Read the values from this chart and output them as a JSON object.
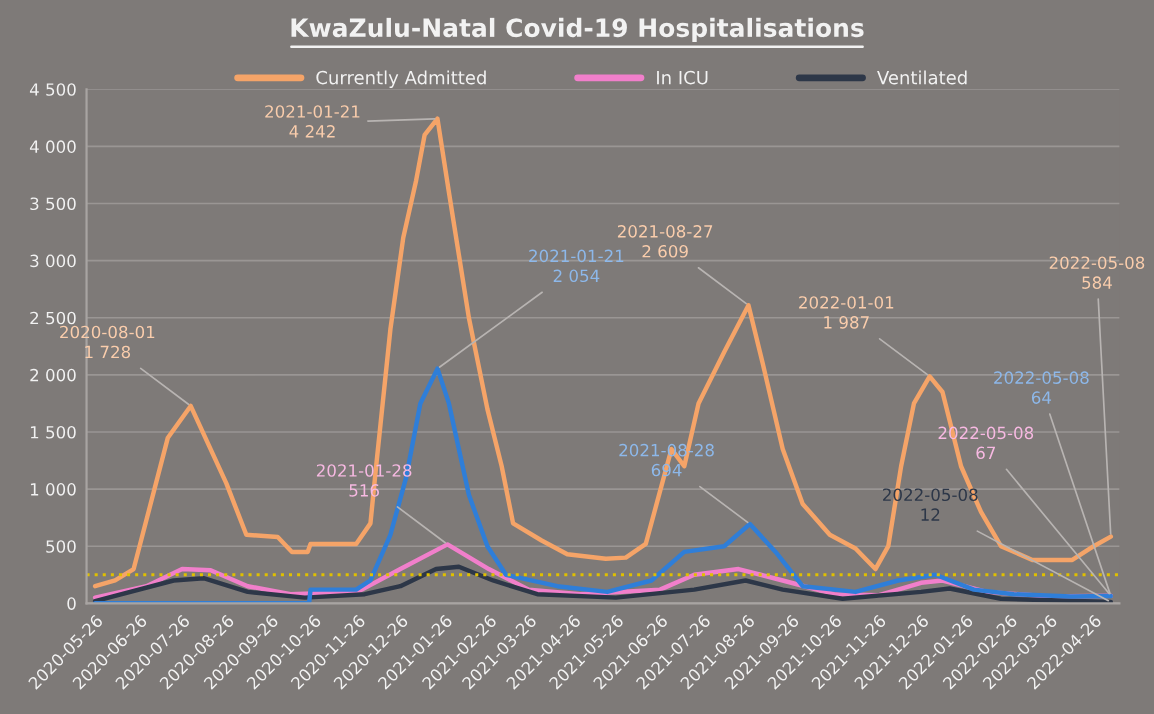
{
  "chart_data": {
    "type": "line",
    "title": "KwaZulu-Natal Covid-19 Hospitalisations",
    "series": [
      {
        "name": "Currently Admitted",
        "color": "#f5a468",
        "x": [
          "2020-05-26",
          "2020-06-09",
          "2020-06-22",
          "2020-07-16",
          "2020-08-01",
          "2020-08-26",
          "2020-09-09",
          "2020-10-01",
          "2020-10-11",
          "2020-10-22",
          "2020-10-24",
          "2020-11-25",
          "2020-12-05",
          "2020-12-09",
          "2020-12-19",
          "2020-12-28",
          "2021-01-06",
          "2021-01-12",
          "2021-01-21",
          "2021-01-29",
          "2021-02-12",
          "2021-02-25",
          "2021-03-07",
          "2021-03-15",
          "2021-04-04",
          "2021-04-22",
          "2021-05-19",
          "2021-06-02",
          "2021-06-16",
          "2021-07-04",
          "2021-07-13",
          "2021-07-23",
          "2021-08-10",
          "2021-08-27",
          "2021-09-06",
          "2021-09-20",
          "2021-10-04",
          "2021-10-23",
          "2021-11-10",
          "2021-11-24",
          "2021-12-03",
          "2021-12-12",
          "2021-12-21",
          "2022-01-01",
          "2022-01-10",
          "2022-01-23",
          "2022-02-06",
          "2022-02-20",
          "2022-03-14",
          "2022-04-11",
          "2022-04-26",
          "2022-05-08"
        ],
        "values": [
          150,
          200,
          300,
          1450,
          1728,
          1050,
          600,
          580,
          450,
          450,
          520,
          520,
          700,
          1200,
          2400,
          3200,
          3700,
          4100,
          4242,
          3600,
          2500,
          1700,
          1200,
          700,
          550,
          430,
          390,
          400,
          520,
          1350,
          1200,
          1750,
          2200,
          2609,
          2100,
          1350,
          870,
          600,
          480,
          300,
          500,
          1200,
          1750,
          1987,
          1850,
          1200,
          800,
          500,
          380,
          380,
          500,
          584
        ]
      },
      {
        "name": "In ICU",
        "color": "#f17fcb",
        "x": [
          "2020-05-26",
          "2020-07-01",
          "2020-07-26",
          "2020-08-15",
          "2020-09-10",
          "2020-10-10",
          "2020-11-26",
          "2020-12-26",
          "2021-01-28",
          "2021-02-26",
          "2021-03-26",
          "2021-05-01",
          "2021-06-26",
          "2021-07-20",
          "2021-08-20",
          "2021-09-20",
          "2021-10-26",
          "2021-11-26",
          "2021-12-26",
          "2022-01-10",
          "2022-02-10",
          "2022-03-26",
          "2022-05-08"
        ],
        "values": [
          50,
          150,
          300,
          290,
          150,
          80,
          100,
          300,
          516,
          300,
          120,
          80,
          120,
          250,
          300,
          200,
          80,
          70,
          180,
          200,
          100,
          60,
          67
        ]
      },
      {
        "name": "Ventilated",
        "color": "#2d3748",
        "x": [
          "2020-05-26",
          "2020-07-20",
          "2020-08-10",
          "2020-09-10",
          "2020-10-20",
          "2020-12-01",
          "2020-12-26",
          "2021-01-20",
          "2021-02-05",
          "2021-03-01",
          "2021-04-01",
          "2021-05-26",
          "2021-07-20",
          "2021-08-25",
          "2021-09-20",
          "2021-11-01",
          "2021-12-26",
          "2022-01-15",
          "2022-02-20",
          "2022-05-08"
        ],
        "values": [
          20,
          200,
          220,
          100,
          50,
          80,
          150,
          300,
          320,
          200,
          80,
          50,
          120,
          200,
          120,
          40,
          100,
          130,
          40,
          12
        ]
      },
      {
        "color": "#2f7ed8",
        "x": [
          "2020-05-26",
          "2020-10-23",
          "2020-10-24",
          "2020-11-25",
          "2020-12-05",
          "2020-12-19",
          "2020-12-30",
          "2021-01-09",
          "2021-01-21",
          "2021-01-29",
          "2021-02-12",
          "2021-02-25",
          "2021-03-10",
          "2021-04-15",
          "2021-05-20",
          "2021-06-20",
          "2021-07-13",
          "2021-08-10",
          "2021-08-28",
          "2021-09-15",
          "2021-10-04",
          "2021-11-10",
          "2021-12-10",
          "2022-01-05",
          "2022-02-01",
          "2022-03-01",
          "2022-04-10",
          "2022-05-08"
        ],
        "values": [
          0,
          0,
          120,
          120,
          200,
          600,
          1100,
          1750,
          2054,
          1750,
          950,
          500,
          250,
          150,
          100,
          200,
          450,
          500,
          694,
          450,
          150,
          100,
          200,
          250,
          120,
          80,
          60,
          64
        ]
      }
    ],
    "xlim": [
      "2020-05-20",
      "2022-05-14"
    ],
    "xticks": [
      "2020-05-26",
      "2020-06-26",
      "2020-07-26",
      "2020-08-26",
      "2020-09-26",
      "2020-10-26",
      "2020-11-26",
      "2020-12-26",
      "2021-01-26",
      "2021-02-26",
      "2021-03-26",
      "2021-04-26",
      "2021-05-26",
      "2021-06-26",
      "2021-07-26",
      "2021-08-26",
      "2021-09-26",
      "2021-10-26",
      "2021-11-26",
      "2021-12-26",
      "2022-01-26",
      "2022-02-26",
      "2022-03-26",
      "2022-04-26"
    ],
    "ylim": [
      0,
      4500
    ],
    "yticks": [
      0,
      500,
      {
        "value": 1000,
        "label": "1 000"
      },
      {
        "value": 1500,
        "label": "1 500"
      },
      {
        "value": 2000,
        "label": "2 000"
      },
      {
        "value": 2500,
        "label": "2 500"
      },
      {
        "value": 3000,
        "label": "3 000"
      },
      {
        "value": 3500,
        "label": "3 500"
      },
      {
        "value": 4000,
        "label": "4 000"
      },
      {
        "value": 4500,
        "label": "4 500"
      }
    ],
    "ref_lines": [
      {
        "axis": "y",
        "value": 250,
        "color": "#e0c000",
        "line_style": "dotted"
      }
    ],
    "annotations": [
      {
        "text": "2020-08-01\n1 728",
        "x": "2020-08-01",
        "y": 1728
      },
      {
        "text": "2021-01-21\n4 242",
        "x": "2021-01-21",
        "y": 4242
      },
      {
        "text": "2021-01-21\n2 054",
        "x": "2021-01-21",
        "y": 2054
      },
      {
        "text": "2021-01-28\n516",
        "x": "2021-01-28",
        "y": 516
      },
      {
        "text": "2021-08-27\n2 609",
        "x": "2021-08-27",
        "y": 2609
      },
      {
        "text": "2021-08-28\n694",
        "x": "2021-08-28",
        "y": 694
      },
      {
        "text": "2022-01-01\n1 987",
        "x": "2022-01-01",
        "y": 1987
      },
      {
        "text": "2022-05-08\n584",
        "x": "2022-05-08",
        "y": 584
      },
      {
        "text": "2022-05-08\n64",
        "x": "2022-05-08",
        "y": 64
      },
      {
        "text": "2022-05-08\n67",
        "x": "2022-05-08",
        "y": 67
      },
      {
        "text": "2022-05-08\n12",
        "x": "2022-05-08",
        "y": 12
      }
    ],
    "grid": "y",
    "legend": "top",
    "line_style": "solid",
    "marker": "none"
  }
}
